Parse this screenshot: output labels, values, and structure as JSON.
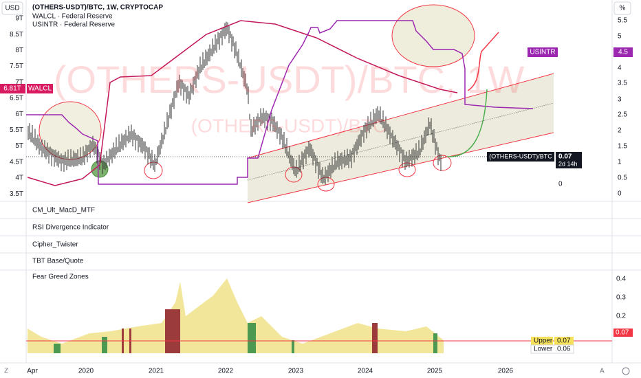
{
  "toolbar": {
    "currency": "USD",
    "percent": "%"
  },
  "legend": [
    "(OTHERS-USDT)/BTC, 1W, CRYPTOCAP",
    "WALCL · Federal Reserve",
    "USINTR · Federal Reserve"
  ],
  "watermark": {
    "main": "(OTHERS-USDT)/BTC, 1W",
    "sub": "(OTHERS-USDT)/BTC"
  },
  "left_axis": [
    "9T",
    "8.5T",
    "8T",
    "7.5T",
    "7T",
    "6.5T",
    "6T",
    "5.5T",
    "5T",
    "4.5T",
    "4T",
    "3.5T"
  ],
  "right_axis": [
    "5.5",
    "5",
    "4",
    "3.5",
    "3",
    "2.5",
    "2",
    "1.5",
    "1",
    "0.5",
    "0"
  ],
  "inner_zero": "0",
  "tags": {
    "walcl_value": "6.81T",
    "walcl_name": "WALCL",
    "usintr_name": "USINTR",
    "usintr_value": "4.5",
    "price_name": "(OTHERS-USDT)/BTC",
    "price_value": "0.07",
    "countdown": "2d 14h"
  },
  "panes": [
    "CM_Ult_MacD_MTF",
    "RSI Divergence Indicator",
    "Cipher_Twister",
    "TBT Base/Quote",
    "Fear Greed Zones"
  ],
  "fear_greed": {
    "axis": [
      "0.4",
      "0.3",
      "0.2"
    ],
    "current": "0.07",
    "upper_label": "Upper",
    "upper_value": "0.07",
    "lower_label": "Lower",
    "lower_value": "0.06"
  },
  "time_axis": [
    "Apr",
    "2020",
    "2021",
    "2022",
    "2023",
    "2024",
    "2025",
    "2026"
  ],
  "footer": {
    "left": "Z",
    "right": "A"
  }
}
